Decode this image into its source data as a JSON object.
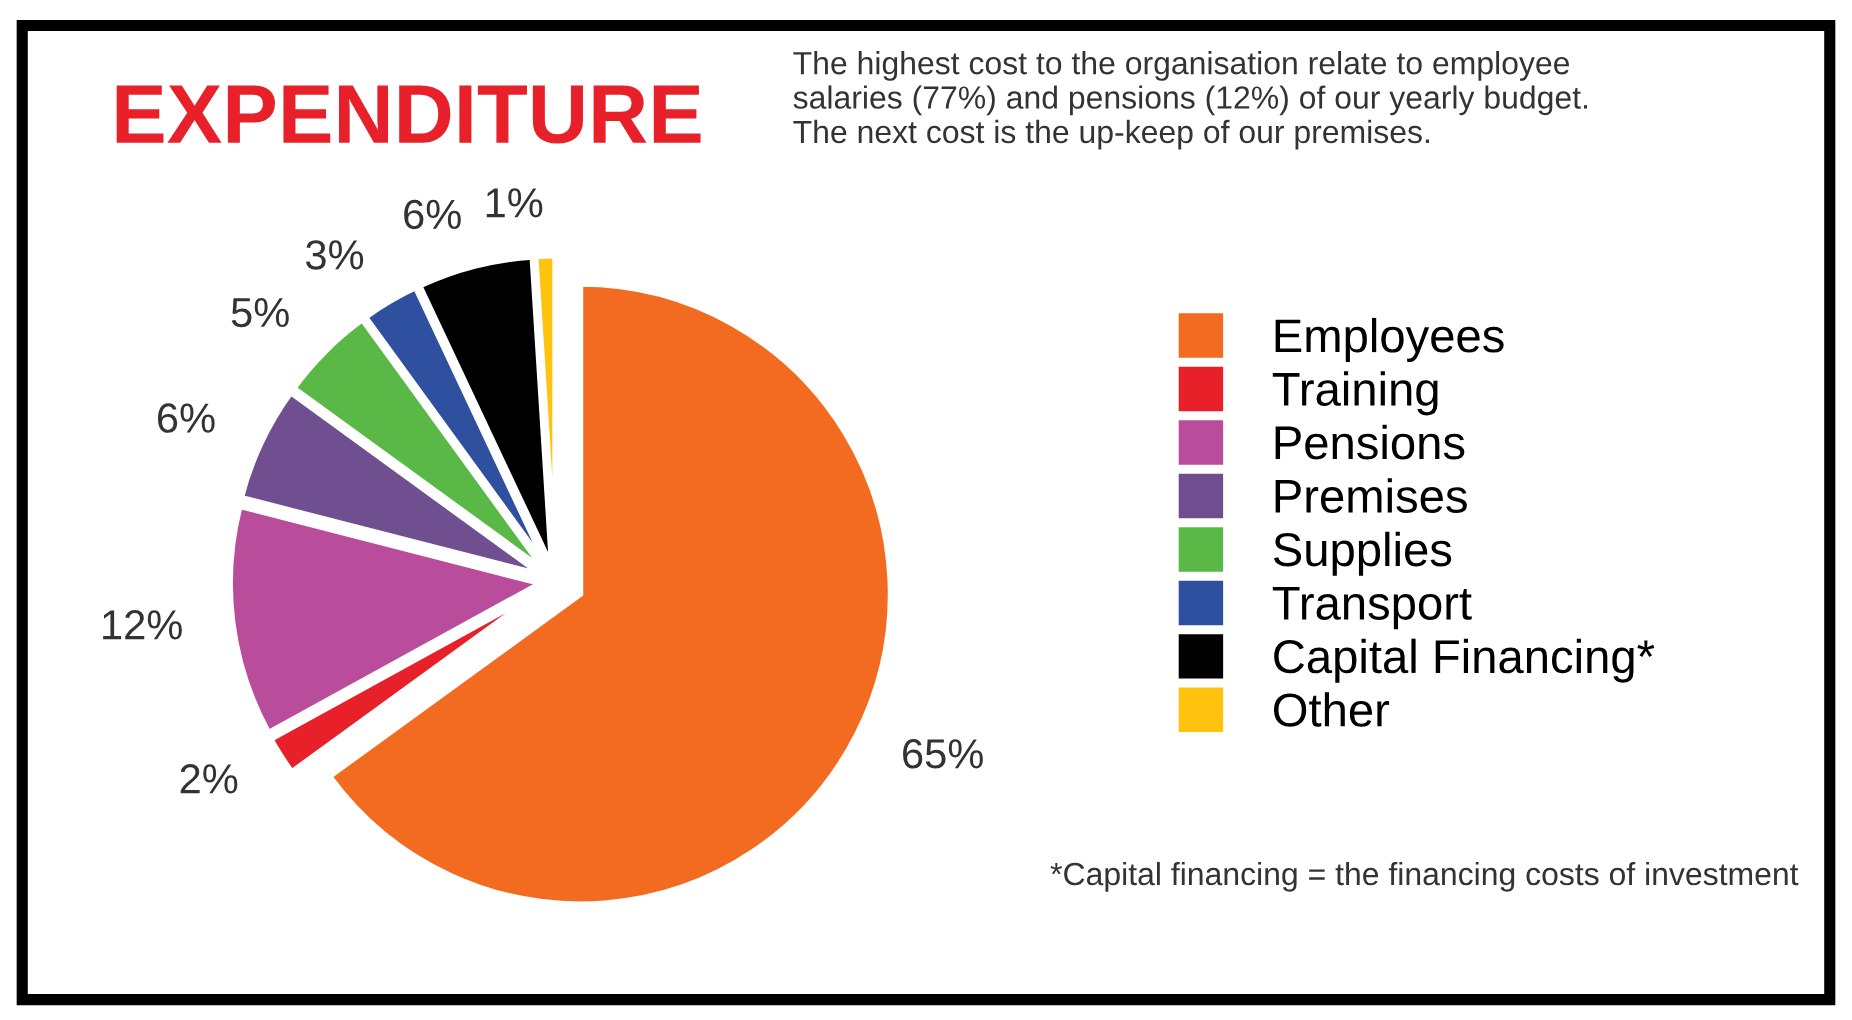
{
  "chart_data": {
    "type": "pie",
    "title": "EXPENDITURE",
    "categories": [
      "Employees",
      "Training",
      "Pensions",
      "Premises",
      "Supplies",
      "Transport",
      "Capital Financing*",
      "Other"
    ],
    "values": [
      65,
      2,
      12,
      6,
      5,
      3,
      6,
      1
    ],
    "value_labels": [
      "65%",
      "2%",
      "12%",
      "6%",
      "5%",
      "3%",
      "6%",
      "1%"
    ],
    "colors": [
      "#f26b21",
      "#e8202a",
      "#b94d9c",
      "#6f4f8f",
      "#5ab946",
      "#2f4f9f",
      "#000000",
      "#ffc20e"
    ],
    "legend": "right",
    "annotations": [
      "The highest cost to the organisation relate to employee\nsalaries (77%) and pensions (12%) of our yearly budget.\nThe next cost is the up-keep of our premises.",
      "*Capital financing = the financing costs of investment"
    ]
  }
}
